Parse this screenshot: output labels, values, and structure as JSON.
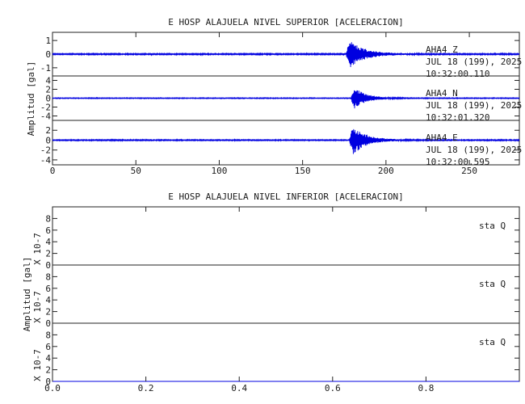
{
  "chart_data": [
    {
      "type": "line",
      "title": "E HOSP ALAJUELA NIVEL SUPERIOR [ACELERACION]",
      "ylabel": "Amplitud [gal]",
      "xlim": [
        0,
        280
      ],
      "x_ticks": [
        0,
        50,
        100,
        150,
        200,
        250
      ],
      "x_tick_labels": [
        "0",
        "50",
        "100",
        "150",
        "200",
        "250"
      ],
      "trace_color": "#0000e0",
      "series": [
        {
          "station": "AHA4",
          "component": "Z",
          "date": "JUL 18 (199), 2025",
          "time": "10:32:00.110",
          "ylim": [
            -1.6,
            1.6
          ],
          "y_ticks": [
            -1,
            0,
            1
          ],
          "y_tick_labels": [
            "-1",
            "0",
            "1"
          ],
          "noise_amplitude": 0.05,
          "event_onset": 176,
          "event_peak": 1.3,
          "event_decay": 9
        },
        {
          "station": "AHA4",
          "component": "N",
          "date": "JUL 18 (199), 2025",
          "time": "10:32:01.320",
          "ylim": [
            -5,
            5
          ],
          "y_ticks": [
            -4,
            -2,
            0,
            2,
            4
          ],
          "y_tick_labels": [
            "-4",
            "-2",
            "0",
            "2",
            "4"
          ],
          "noise_amplitude": 0.1,
          "event_onset": 179,
          "event_peak": 3.2,
          "event_decay": 7
        },
        {
          "station": "AHA4",
          "component": "E",
          "date": "JUL 18 (199), 2025",
          "time": "10:32:00.595",
          "ylim": [
            -5,
            4
          ],
          "y_ticks": [
            -4,
            -2,
            0,
            2
          ],
          "y_tick_labels": [
            "-4",
            "-2",
            "0",
            "2"
          ],
          "noise_amplitude": 0.12,
          "event_onset": 178,
          "event_peak": 3.8,
          "event_decay": 8
        }
      ]
    },
    {
      "type": "line",
      "title": "E HOSP ALAJUELA NIVEL INFERIOR [ACELERACION]",
      "ylabel": "Amplitud [gal]",
      "scale_label": "X 10-7",
      "xlim": [
        0,
        1
      ],
      "x_ticks": [
        0.0,
        0.2,
        0.4,
        0.6,
        0.8
      ],
      "x_tick_labels": [
        "0.0",
        "0.2",
        "0.4",
        "0.6",
        "0.8"
      ],
      "trace_color": "#0000e0",
      "series": [
        {
          "station": "sta",
          "component": "Q",
          "values_constant": 0,
          "ylim": [
            0,
            10
          ],
          "y_ticks": [
            0,
            2,
            4,
            6,
            8
          ],
          "y_tick_labels": [
            "0",
            "2",
            "4",
            "6",
            "8"
          ]
        },
        {
          "station": "sta",
          "component": "Q",
          "values_constant": 0,
          "ylim": [
            0,
            10
          ],
          "y_ticks": [
            0,
            2,
            4,
            6,
            8
          ],
          "y_tick_labels": [
            "0",
            "2",
            "4",
            "6",
            "8"
          ]
        },
        {
          "station": "sta",
          "component": "Q",
          "values_constant": 0,
          "ylim": [
            0,
            10
          ],
          "y_ticks": [
            0,
            2,
            4,
            6,
            8
          ],
          "y_tick_labels": [
            "0",
            "2",
            "4",
            "6",
            "8"
          ]
        }
      ]
    }
  ]
}
